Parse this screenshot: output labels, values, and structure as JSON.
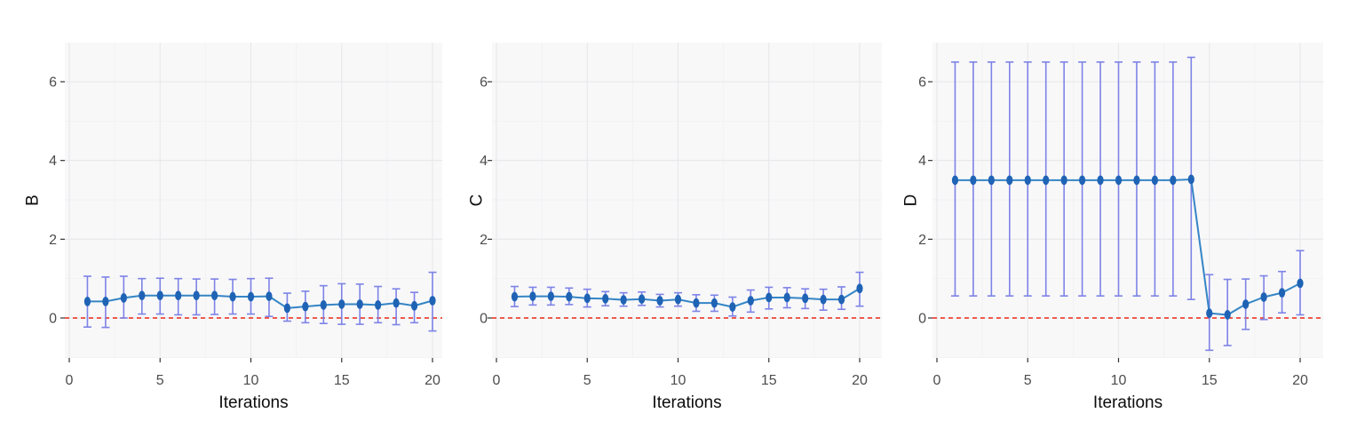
{
  "figure": {
    "xlabel": "Iterations",
    "x_ticks": [
      0,
      5,
      10,
      15,
      20
    ],
    "y_ticks": [
      0,
      2,
      4,
      6
    ],
    "x_minor_gridlines": [
      2.5,
      7.5,
      12.5,
      17.5
    ],
    "y_minor_gridlines": [
      -1,
      1,
      3,
      5
    ],
    "xlim": [
      -0.25,
      21.2
    ],
    "ylim": [
      -1.02,
      7.0
    ],
    "refline_y": 0,
    "legend": "none",
    "grid": "on"
  },
  "colors": {
    "point": "#1f63b5",
    "line": "#3585c5",
    "errorbar": "#7d83e6",
    "refline": "#ee2516",
    "panel_bg": "#f8f8f9",
    "grid_major": "#e8e8eb",
    "grid_minor": "#f1f1f3",
    "tick_mark": "#333333",
    "tick_label": "#4d4d4d",
    "axis_title": "#0d0d0d"
  },
  "chart_data": [
    {
      "type": "line",
      "title": "",
      "ylabel": "B",
      "xlabel": "Iterations",
      "x": [
        1,
        2,
        3,
        4,
        5,
        6,
        7,
        8,
        9,
        10,
        11,
        12,
        13,
        14,
        15,
        16,
        17,
        18,
        19,
        20
      ],
      "mean": [
        0.42,
        0.42,
        0.51,
        0.57,
        0.57,
        0.57,
        0.57,
        0.57,
        0.54,
        0.54,
        0.55,
        0.25,
        0.29,
        0.33,
        0.35,
        0.35,
        0.33,
        0.38,
        0.31,
        0.44
      ],
      "lower": [
        -0.23,
        -0.24,
        0.0,
        0.1,
        0.1,
        0.08,
        0.08,
        0.09,
        0.1,
        0.1,
        0.04,
        -0.08,
        -0.12,
        -0.14,
        -0.16,
        -0.16,
        -0.12,
        -0.17,
        -0.12,
        -0.33
      ],
      "upper": [
        1.06,
        1.04,
        1.06,
        1.0,
        1.01,
        1.0,
        0.99,
        0.99,
        0.98,
        1.0,
        1.01,
        0.63,
        0.68,
        0.82,
        0.87,
        0.86,
        0.8,
        0.74,
        0.65,
        1.16
      ],
      "refline_y": 0
    },
    {
      "type": "line",
      "title": "",
      "ylabel": "C",
      "xlabel": "Iterations",
      "x": [
        1,
        2,
        3,
        4,
        5,
        6,
        7,
        8,
        9,
        10,
        11,
        12,
        13,
        14,
        15,
        16,
        17,
        18,
        19,
        20
      ],
      "mean": [
        0.54,
        0.55,
        0.55,
        0.54,
        0.5,
        0.49,
        0.46,
        0.48,
        0.44,
        0.47,
        0.38,
        0.38,
        0.28,
        0.44,
        0.52,
        0.52,
        0.5,
        0.47,
        0.47,
        0.75
      ],
      "lower": [
        0.29,
        0.33,
        0.33,
        0.34,
        0.28,
        0.31,
        0.3,
        0.32,
        0.28,
        0.3,
        0.17,
        0.17,
        0.05,
        0.15,
        0.23,
        0.26,
        0.24,
        0.2,
        0.22,
        0.3
      ],
      "upper": [
        0.8,
        0.78,
        0.78,
        0.76,
        0.73,
        0.67,
        0.64,
        0.66,
        0.6,
        0.64,
        0.59,
        0.58,
        0.53,
        0.71,
        0.78,
        0.77,
        0.74,
        0.73,
        0.79,
        1.16
      ],
      "refline_y": 0
    },
    {
      "type": "line",
      "title": "",
      "ylabel": "D",
      "xlabel": "Iterations",
      "x": [
        1,
        2,
        3,
        4,
        5,
        6,
        7,
        8,
        9,
        10,
        11,
        12,
        13,
        14,
        15,
        16,
        17,
        18,
        19,
        20
      ],
      "mean": [
        3.5,
        3.5,
        3.5,
        3.5,
        3.5,
        3.5,
        3.5,
        3.5,
        3.5,
        3.5,
        3.5,
        3.5,
        3.5,
        3.52,
        0.12,
        0.08,
        0.35,
        0.53,
        0.64,
        0.88
      ],
      "lower": [
        0.56,
        0.56,
        0.56,
        0.56,
        0.56,
        0.56,
        0.56,
        0.56,
        0.56,
        0.56,
        0.56,
        0.56,
        0.56,
        0.47,
        -0.82,
        -0.7,
        -0.29,
        -0.04,
        0.13,
        0.08
      ],
      "upper": [
        6.5,
        6.5,
        6.5,
        6.5,
        6.5,
        6.5,
        6.5,
        6.5,
        6.5,
        6.5,
        6.5,
        6.5,
        6.5,
        6.62,
        1.1,
        0.98,
        0.99,
        1.07,
        1.18,
        1.71
      ],
      "refline_y": 0
    }
  ]
}
